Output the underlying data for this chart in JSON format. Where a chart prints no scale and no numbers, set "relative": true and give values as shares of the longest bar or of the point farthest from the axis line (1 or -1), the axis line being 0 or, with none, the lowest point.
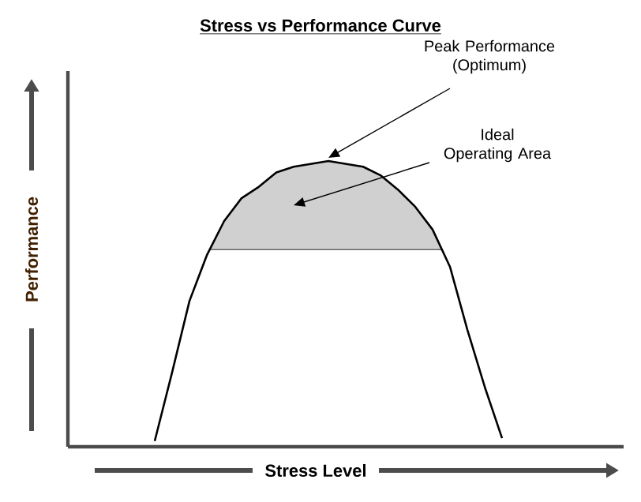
{
  "chart_data": {
    "type": "line",
    "title": "Stress vs Performance Curve",
    "xlabel": "Stress Level",
    "ylabel": "Performance",
    "relative": true,
    "categories": [
      null,
      null,
      null,
      null,
      null,
      null,
      null,
      null,
      null,
      null,
      null,
      null,
      null,
      null,
      null,
      null,
      null,
      null,
      null,
      null,
      null,
      null,
      null,
      null,
      null,
      null,
      null,
      null,
      null,
      null,
      null,
      null,
      null
    ],
    "series": [
      {
        "color": "#000000",
        "values": [
          null,
          null,
          null,
          null,
          null,
          0.02,
          0.26,
          0.51,
          0.67,
          0.79,
          0.87,
          0.91,
          0.96,
          0.98,
          0.99,
          1.0,
          0.99,
          0.98,
          0.95,
          0.9,
          0.84,
          0.76,
          0.63,
          0.41,
          0.21,
          0.03,
          null,
          null,
          null,
          null,
          null,
          null,
          null
        ]
      }
    ],
    "bands": [
      {
        "axis": "y",
        "from": 0.69,
        "to": 1.0,
        "label": "Ideal Operating Area",
        "color": "#d0d0d0"
      }
    ],
    "annotations": [
      "Peak Performance (Optimum)"
    ],
    "marker": "none",
    "line_style": "solid"
  }
}
